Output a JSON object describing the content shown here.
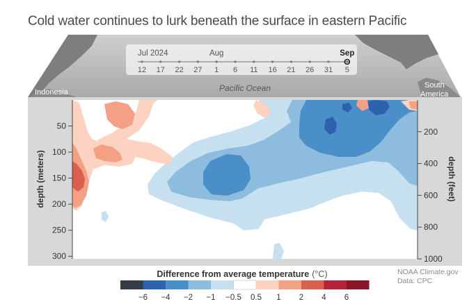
{
  "title": "Cold water continues to lurk beneath the surface in eastern Pacific",
  "map": {
    "ocean_label": "Pacific Ocean",
    "left_label": "Indonesia",
    "right_label": [
      "South",
      "America"
    ]
  },
  "timeline": {
    "month_labels": [
      {
        "text": "Jul 2024",
        "at": "12"
      },
      {
        "text": "Aug",
        "at": "1"
      },
      {
        "text": "Sep",
        "at": "5"
      }
    ],
    "ticks": [
      "12",
      "17",
      "22",
      "27",
      "1",
      "6",
      "11",
      "16",
      "21",
      "26",
      "31",
      "5"
    ],
    "current": "5"
  },
  "credit": [
    "NOAA Climate.gov",
    "Data: CPC"
  ],
  "chart_data": {
    "type": "heatmap",
    "description_axis_x": "Pacific longitude, Indonesia (west) to South America (east)",
    "ylabel_left": "depth (meters)",
    "ylabel_right": "depth (feet)",
    "y_left": {
      "range": [
        0,
        305
      ],
      "ticks": [
        50,
        100,
        150,
        200,
        250,
        300
      ]
    },
    "y_right": {
      "range_feet": [
        0,
        1000
      ],
      "ticks": [
        200,
        400,
        600,
        800,
        1000
      ]
    },
    "colorbar": {
      "title": "Difference from average temperature",
      "unit": "(°C)",
      "tick_labels": [
        "−6",
        "−4",
        "−2",
        "−1",
        "−0.5",
        "0.5",
        "1",
        "2",
        "4",
        "6"
      ],
      "bounds": [
        -8,
        -6,
        -4,
        -2,
        -1,
        -0.5,
        0.5,
        1,
        2,
        4,
        6,
        8
      ],
      "colors": [
        "#353c48",
        "#2f62ae",
        "#4a8fc8",
        "#8dbcdf",
        "#c6e0f0",
        "#ffffff",
        "#fcd3c1",
        "#f3a084",
        "#d9604f",
        "#b3243b",
        "#8a1628"
      ]
    },
    "anomaly_regions": [
      {
        "sign": "warm",
        "level": 0.5,
        "location": "west, 0-210 m"
      },
      {
        "sign": "warm",
        "level": 1,
        "location": "west, 100-190 m"
      },
      {
        "sign": "warm",
        "level": 2,
        "location": "far west, 120-180 m"
      },
      {
        "sign": "warm",
        "level": 1,
        "location": "west, near surface"
      },
      {
        "sign": "cold",
        "level": -0.5,
        "location": "central to east, 20-320 m"
      },
      {
        "sign": "cold",
        "level": -1,
        "location": "central to east, 20-270 m"
      },
      {
        "sign": "cold",
        "level": -2,
        "location": "central 120-180 m; east 10-100 m"
      },
      {
        "sign": "cold",
        "level": -4,
        "location": "east, 20-80 m"
      }
    ]
  }
}
